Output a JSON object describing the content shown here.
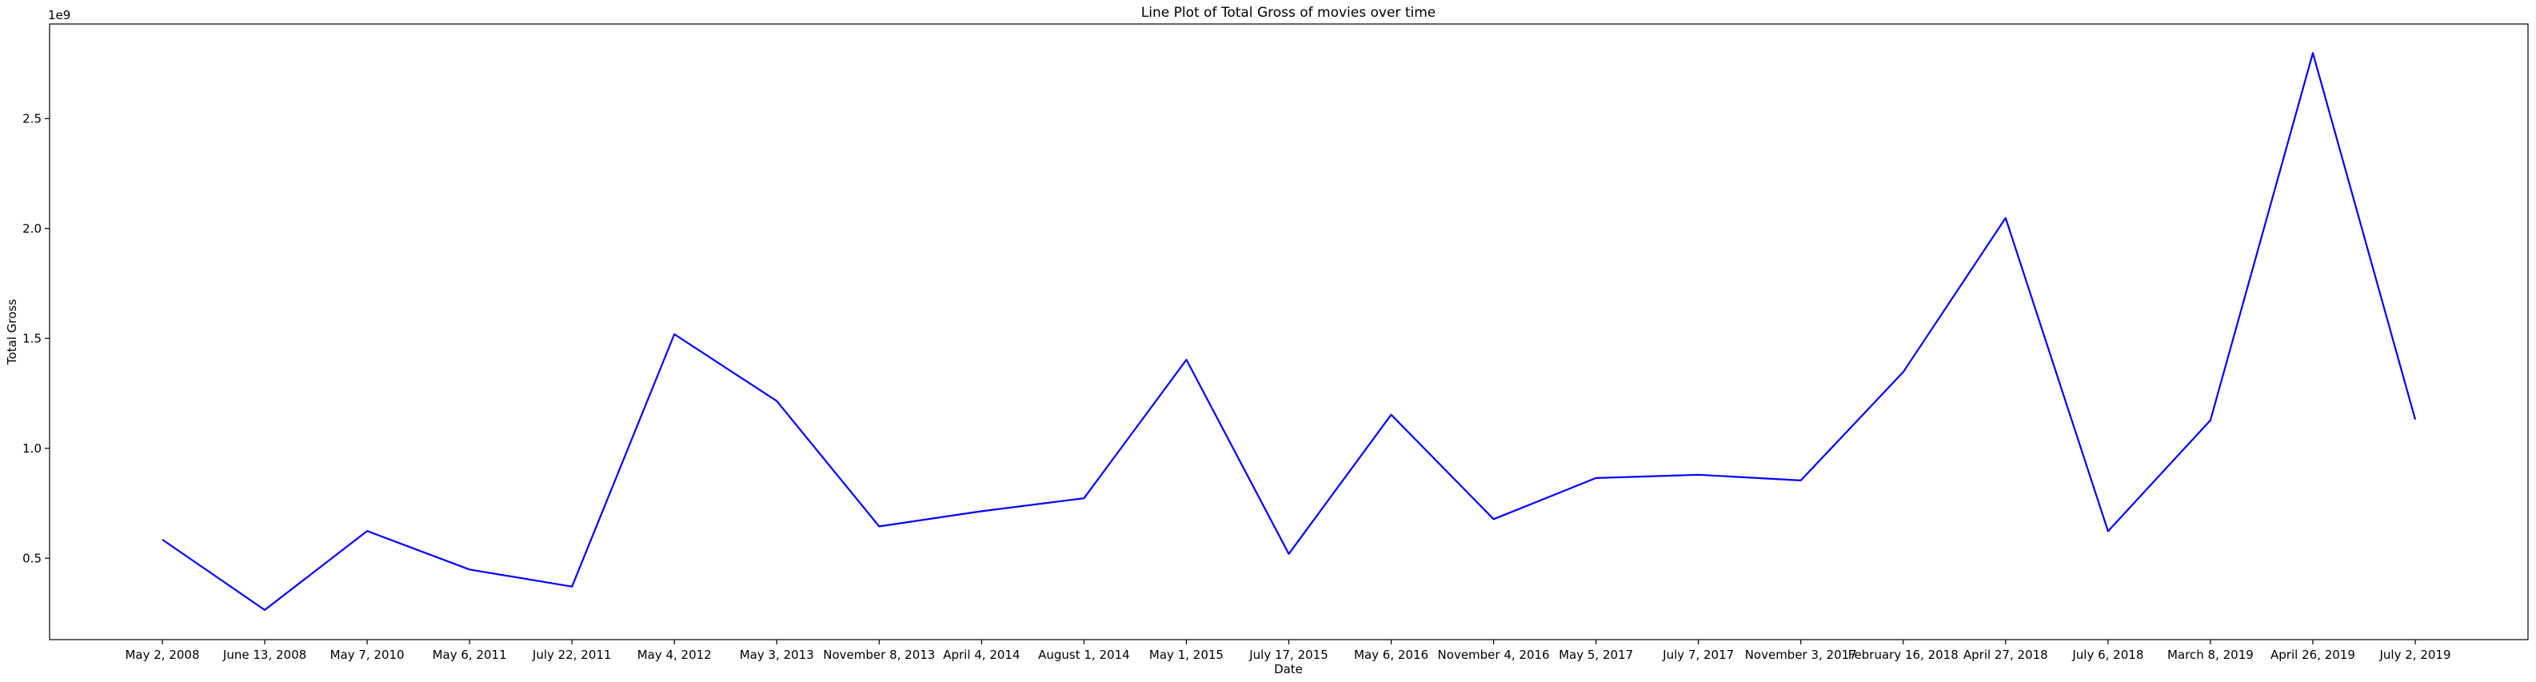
{
  "chart_data": {
    "type": "line",
    "title": "Line Plot of Total Gross of movies over time",
    "xlabel": "Date",
    "ylabel": "Total Gross",
    "y_offset_label": "1e9",
    "y_scale": 1000000000,
    "ylim": [
      0.13,
      2.93
    ],
    "yticks": [
      0.5,
      1.0,
      1.5,
      2.0,
      2.5
    ],
    "ytick_labels": [
      "0.5",
      "1.0",
      "1.5",
      "2.0",
      "2.5"
    ],
    "grid": false,
    "line_color": "#0000ff",
    "categories": [
      "May 2, 2008",
      "June 13, 2008",
      "May 7, 2010",
      "May 6, 2011",
      "July 22, 2011",
      "May 4, 2012",
      "May 3, 2013",
      "November 8, 2013",
      "April 4, 2014",
      "August 1, 2014",
      "May 1, 2015",
      "July 17, 2015",
      "May 6, 2016",
      "November 4, 2016",
      "May 5, 2017",
      "July 7, 2017",
      "November 3, 2017",
      "February 16, 2018",
      "April 27, 2018",
      "July 6, 2018",
      "March 8, 2019",
      "April 26, 2019",
      "July 2, 2019"
    ],
    "values": [
      0.585,
      0.265,
      0.624,
      0.449,
      0.371,
      1.519,
      1.215,
      0.645,
      0.714,
      0.773,
      1.403,
      0.52,
      1.153,
      0.678,
      0.865,
      0.88,
      0.854,
      1.347,
      2.048,
      0.623,
      1.128,
      2.798,
      1.131
    ]
  }
}
